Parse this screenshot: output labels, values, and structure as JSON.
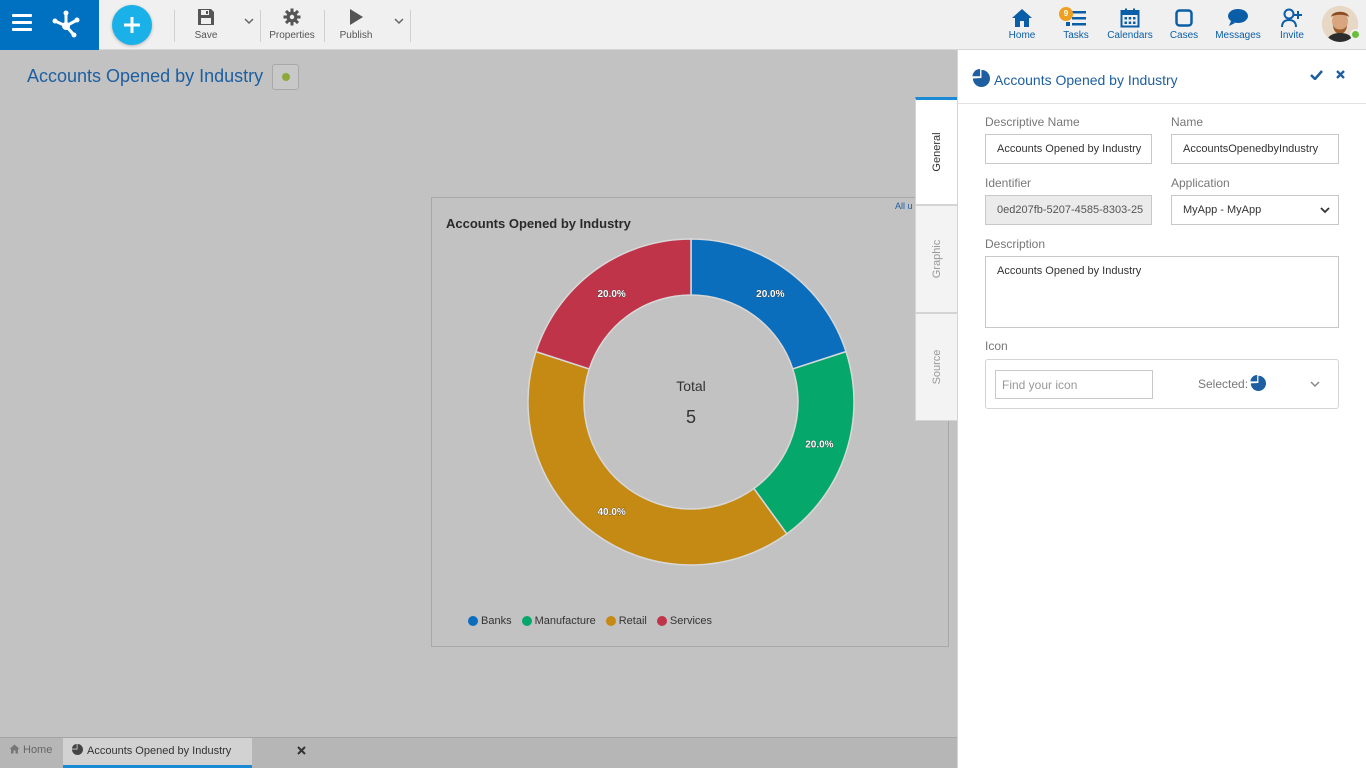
{
  "toolbar": {
    "save_label": "Save",
    "properties_label": "Properties",
    "publish_label": "Publish"
  },
  "nav": {
    "home_label": "Home",
    "tasks_label": "Tasks",
    "tasks_badge": "9",
    "calendars_label": "Calendars",
    "cases_label": "Cases",
    "messages_label": "Messages",
    "invite_label": "Invite"
  },
  "page": {
    "title": "Accounts Opened by Industry",
    "all_link": "All u"
  },
  "chart_data": {
    "type": "pie",
    "title": "Accounts Opened by Industry",
    "center_label": "Total",
    "center_value": "5",
    "categories": [
      "Banks",
      "Manufacture",
      "Retail",
      "Services"
    ],
    "values": [
      1,
      1,
      2,
      1
    ],
    "percent_labels": [
      "20.0%",
      "20.0%",
      "40.0%",
      "20.0%"
    ],
    "colors": [
      "#0a6ebd",
      "#05a86a",
      "#c48a14",
      "#c0344a"
    ],
    "legend_position": "bottom"
  },
  "bottombar": {
    "home_tab": "Home",
    "current_tab": "Accounts Opened by Industry"
  },
  "side_tabs": {
    "general": "General",
    "graphic": "Graphic",
    "source": "Source"
  },
  "panel": {
    "title": "Accounts Opened by Industry",
    "descriptive_name_label": "Descriptive Name",
    "descriptive_name_value": "Accounts Opened by Industry",
    "name_label": "Name",
    "name_value": "AccountsOpenedbyIndustry",
    "identifier_label": "Identifier",
    "identifier_value": "0ed207fb-5207-4585-8303-25",
    "application_label": "Application",
    "application_value": "MyApp - MyApp",
    "description_label": "Description",
    "description_value": "Accounts Opened by Industry",
    "icon_label": "Icon",
    "icon_search_placeholder": "Find your icon",
    "icon_selected_label": "Selected:"
  },
  "colors": {
    "brand": "#0070c0",
    "accent": "#1ab0e8",
    "link": "#1d5fa0"
  }
}
